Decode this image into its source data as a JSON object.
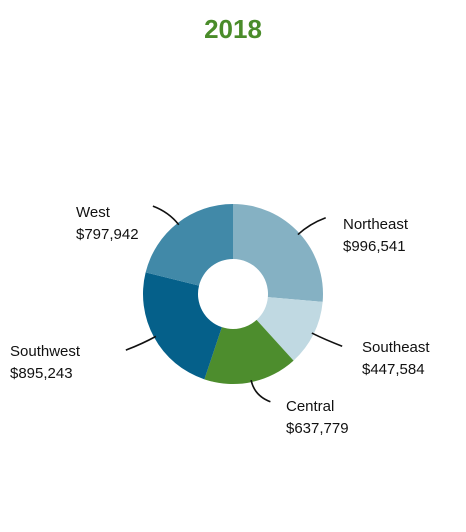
{
  "chart_data": {
    "type": "pie",
    "style": "donut",
    "title": "2018",
    "title_color": "#4a8c2a",
    "legend": "none",
    "slices": [
      {
        "label": "Northeast",
        "value": 996541,
        "value_label": "$996,541",
        "color": "#85b1c3"
      },
      {
        "label": "Southeast",
        "value": 447584,
        "value_label": "$447,584",
        "color": "#c0d9e2"
      },
      {
        "label": "Central",
        "value": 637779,
        "value_label": "$637,779",
        "color": "#4d8d2d"
      },
      {
        "label": "Southwest",
        "value": 895243,
        "value_label": "$895,243",
        "color": "#05608a"
      },
      {
        "label": "West",
        "value": 797942,
        "value_label": "$797,942",
        "color": "#4189a8"
      }
    ]
  }
}
